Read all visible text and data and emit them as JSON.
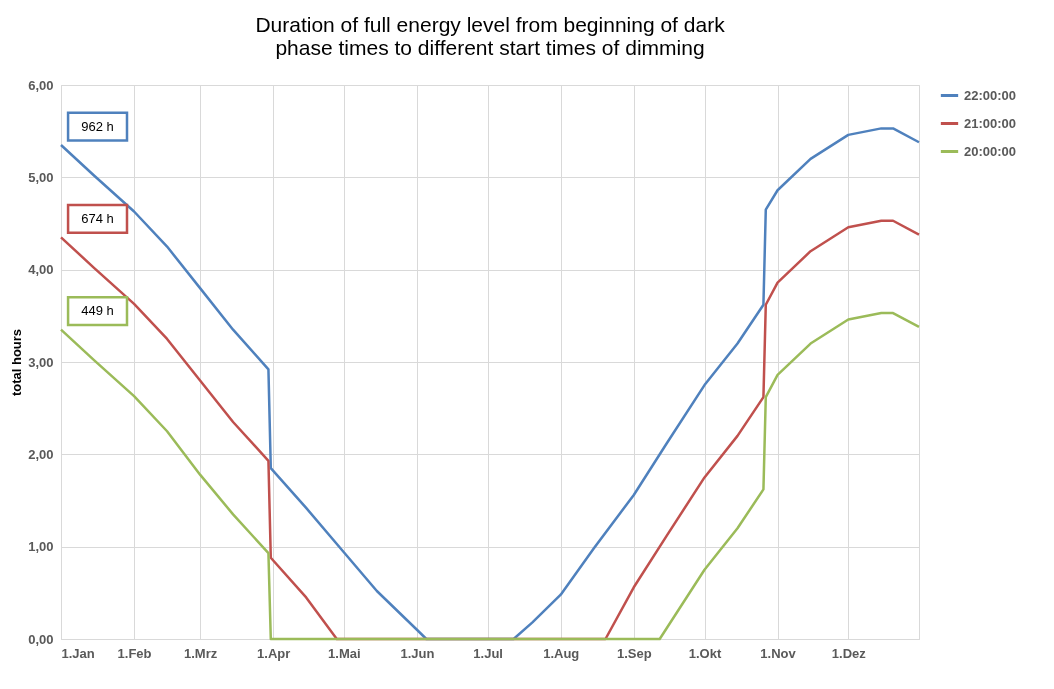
{
  "chart_data": {
    "type": "line",
    "title": "Duration of full energy level from beginning of dark phase times to different start times of dimming",
    "ylabel": "total hours",
    "xlim": [
      "--01-01",
      "--12-31"
    ],
    "xticks": [
      {
        "value": "--01-01",
        "label": "1.Jan"
      },
      {
        "value": "--02-01",
        "label": "1.Feb"
      },
      {
        "value": "--03-01",
        "label": "1.Mrz"
      },
      {
        "value": "--04-01",
        "label": "1.Apr"
      },
      {
        "value": "--05-01",
        "label": "1.Mai"
      },
      {
        "value": "--06-01",
        "label": "1.Jun"
      },
      {
        "value": "--07-01",
        "label": "1.Jul"
      },
      {
        "value": "--08-01",
        "label": "1.Aug"
      },
      {
        "value": "--09-01",
        "label": "1.Sep"
      },
      {
        "value": "--10-01",
        "label": "1.Okt"
      },
      {
        "value": "--11-01",
        "label": "1.Nov"
      },
      {
        "value": "--12-01",
        "label": "1.Dez"
      }
    ],
    "ylim": [
      0,
      6
    ],
    "yticks": [
      {
        "value": 0,
        "label": "0,00"
      },
      {
        "value": 1,
        "label": "1,00"
      },
      {
        "value": 2,
        "label": "2,00"
      },
      {
        "value": 3,
        "label": "3,00"
      },
      {
        "value": 4,
        "label": "4,00"
      },
      {
        "value": 5,
        "label": "5,00"
      },
      {
        "value": 6,
        "label": "6,00"
      }
    ],
    "grid": true,
    "legend": "right",
    "line_style": "solid",
    "marker": "none",
    "annotations": [
      "962 h",
      "674 h",
      "449 h"
    ],
    "series": [
      {
        "name": "22:00:00",
        "color": "#4f81bd",
        "x": [
          "--01-01",
          "--01-15",
          "--02-01",
          "--02-15",
          "--03-01",
          "--03-15",
          "--03-30",
          "--03-31",
          "--04-15",
          "--05-01",
          "--05-15",
          "--06-01",
          "--06-05",
          "--07-12",
          "--07-20",
          "--08-01",
          "--08-15",
          "--09-01",
          "--09-15",
          "--10-01",
          "--10-15",
          "--10-26",
          "--10-27",
          "--11-01",
          "--11-15",
          "--12-01",
          "--12-15",
          "--12-20",
          "--12-31"
        ],
        "values": [
          5.35,
          5.02,
          4.63,
          4.25,
          3.8,
          3.35,
          2.92,
          1.85,
          1.42,
          0.94,
          0.52,
          0.1,
          0,
          0,
          0.18,
          0.48,
          0.98,
          1.56,
          2.12,
          2.75,
          3.2,
          3.62,
          4.65,
          4.86,
          5.2,
          5.46,
          5.53,
          5.53,
          5.38
        ]
      },
      {
        "name": "21:00:00",
        "color": "#c0504d",
        "x": [
          "--01-01",
          "--01-15",
          "--02-01",
          "--02-15",
          "--03-01",
          "--03-15",
          "--03-30",
          "--03-31",
          "--04-15",
          "--04-28",
          "--08-20",
          "--09-01",
          "--09-15",
          "--10-01",
          "--10-15",
          "--10-26",
          "--10-27",
          "--11-01",
          "--11-15",
          "--12-01",
          "--12-15",
          "--12-20",
          "--12-31"
        ],
        "values": [
          4.35,
          4.02,
          3.63,
          3.25,
          2.8,
          2.35,
          1.93,
          0.88,
          0.45,
          0,
          0,
          0.56,
          1.12,
          1.75,
          2.2,
          2.62,
          3.62,
          3.86,
          4.2,
          4.46,
          4.53,
          4.53,
          4.38
        ]
      },
      {
        "name": "20:00:00",
        "color": "#9bbb59",
        "x": [
          "--01-01",
          "--01-15",
          "--02-01",
          "--02-15",
          "--03-01",
          "--03-15",
          "--03-30",
          "--03-31",
          "--09-12",
          "--10-01",
          "--10-15",
          "--10-26",
          "--10-27",
          "--11-01",
          "--11-15",
          "--12-01",
          "--12-15",
          "--12-20",
          "--12-31"
        ],
        "values": [
          3.35,
          3.02,
          2.63,
          2.25,
          1.78,
          1.35,
          0.93,
          0,
          0,
          0.75,
          1.2,
          1.62,
          2.62,
          2.86,
          3.2,
          3.46,
          3.53,
          3.53,
          3.38
        ]
      }
    ]
  }
}
